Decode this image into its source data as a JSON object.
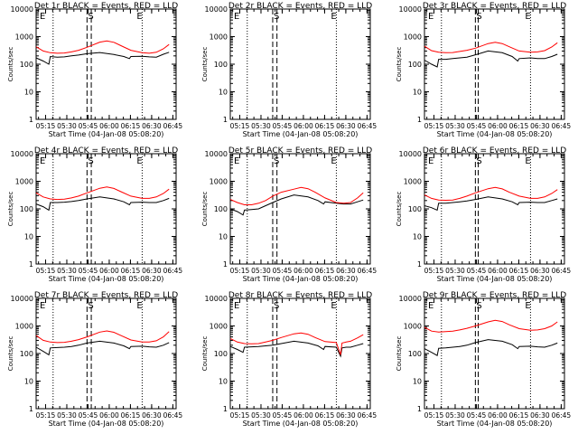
{
  "figure": {
    "time_axis_label": "Start Time (04-Jan-08 05:08:20)",
    "y_axis_label": "Counts/sec",
    "x_tick_labels": [
      "05:15",
      "05:30",
      "05:45",
      "06:00",
      "06:15",
      "06:30",
      "06:45"
    ],
    "y_tick_labels": [
      "1",
      "10",
      "100",
      "1000",
      "10000"
    ],
    "flag_labels": [
      "E",
      "S",
      "E"
    ],
    "colors": {
      "events": "#000000",
      "lld": "#ff0000",
      "frame": "#000000",
      "background": "#ffffff"
    }
  },
  "chart_data": [
    {
      "type": "line",
      "title": "Det 1r BLACK = Events, RED = LLD",
      "xlabel": "Start Time (04-Jan-08 05:08:20)",
      "ylabel": "Counts/sec",
      "x_unit": "minutes after 05:08:20",
      "xlim": [
        0,
        99
      ],
      "ylim": [
        1,
        10000
      ],
      "yscale": "log",
      "markers": {
        "dotted": [
          12,
          75
        ],
        "dashed": [
          36,
          39
        ]
      },
      "series": [
        {
          "name": "Events",
          "color": "black",
          "x": [
            0,
            5,
            9,
            10,
            15,
            20,
            25,
            30,
            36,
            45,
            55,
            62,
            66,
            67,
            75,
            80,
            85,
            90,
            94
          ],
          "y": [
            170,
            130,
            100,
            190,
            180,
            185,
            200,
            215,
            240,
            265,
            225,
            190,
            160,
            190,
            195,
            185,
            180,
            230,
            270
          ]
        },
        {
          "name": "LLD",
          "color": "red",
          "x": [
            0,
            5,
            10,
            15,
            20,
            25,
            30,
            36,
            45,
            50,
            55,
            60,
            67,
            75,
            80,
            85,
            90,
            94
          ],
          "y": [
            430,
            300,
            260,
            250,
            255,
            280,
            320,
            410,
            630,
            700,
            620,
            470,
            320,
            260,
            250,
            270,
            360,
            520
          ]
        }
      ]
    },
    {
      "type": "line",
      "title": "Det 2r BLACK = Events, RED = LLD",
      "xlabel": "Start Time (04-Jan-08 05:08:20)",
      "ylabel": "Counts/sec",
      "x_unit": "minutes after 05:08:20",
      "xlim": [
        0,
        99
      ],
      "ylim": [
        1,
        10000
      ],
      "yscale": "log",
      "markers": {
        "dotted": [
          12,
          75
        ],
        "dashed": [
          30,
          33
        ]
      },
      "series": []
    },
    {
      "type": "line",
      "title": "Det 3r BLACK = Events, RED = LLD",
      "xlabel": "Start Time (04-Jan-08 05:08:20)",
      "ylabel": "Counts/sec",
      "x_unit": "minutes after 05:08:20",
      "xlim": [
        0,
        99
      ],
      "ylim": [
        1,
        10000
      ],
      "yscale": "log",
      "markers": {
        "dotted": [
          12,
          75
        ],
        "dashed": [
          36,
          38
        ]
      },
      "series": [
        {
          "name": "Events",
          "color": "black",
          "x": [
            0,
            5,
            9,
            10,
            15,
            20,
            25,
            30,
            36,
            45,
            55,
            62,
            66,
            67,
            75,
            80,
            85,
            90,
            94
          ],
          "y": [
            140,
            100,
            80,
            150,
            150,
            160,
            170,
            180,
            220,
            300,
            260,
            190,
            130,
            160,
            170,
            160,
            160,
            190,
            230
          ]
        },
        {
          "name": "LLD",
          "color": "red",
          "x": [
            0,
            5,
            10,
            15,
            20,
            25,
            30,
            36,
            45,
            50,
            55,
            60,
            67,
            75,
            80,
            85,
            90,
            94
          ],
          "y": [
            450,
            310,
            270,
            260,
            265,
            290,
            320,
            380,
            560,
            620,
            560,
            430,
            300,
            270,
            280,
            310,
            420,
            600
          ]
        }
      ]
    },
    {
      "type": "line",
      "title": "Det 4r BLACK = Events, RED = LLD",
      "xlabel": "Start Time (04-Jan-08 05:08:20)",
      "ylabel": "Counts/sec",
      "x_unit": "minutes after 05:08:20",
      "xlim": [
        0,
        99
      ],
      "ylim": [
        1,
        10000
      ],
      "yscale": "log",
      "markers": {
        "dotted": [
          12,
          75
        ],
        "dashed": [
          36,
          39
        ]
      },
      "series": [
        {
          "name": "Events",
          "color": "black",
          "x": [
            0,
            5,
            9,
            10,
            15,
            20,
            25,
            30,
            36,
            45,
            55,
            62,
            66,
            67,
            75,
            80,
            85,
            90,
            94
          ],
          "y": [
            150,
            120,
            90,
            170,
            170,
            175,
            185,
            200,
            230,
            270,
            230,
            180,
            140,
            170,
            175,
            170,
            170,
            200,
            240
          ]
        },
        {
          "name": "LLD",
          "color": "red",
          "x": [
            0,
            5,
            10,
            15,
            20,
            25,
            30,
            36,
            45,
            50,
            55,
            60,
            67,
            75,
            80,
            85,
            90,
            94
          ],
          "y": [
            380,
            270,
            230,
            220,
            225,
            250,
            290,
            380,
            560,
            620,
            550,
            420,
            290,
            240,
            240,
            270,
            360,
            520
          ]
        }
      ]
    },
    {
      "type": "line",
      "title": "Det 5r BLACK = Events, RED = LLD",
      "xlabel": "Start Time (04-Jan-08 05:08:20)",
      "ylabel": "Counts/sec",
      "x_unit": "minutes after 05:08:20",
      "xlim": [
        0,
        99
      ],
      "ylim": [
        1,
        10000
      ],
      "yscale": "log",
      "markers": {
        "dotted": [
          12,
          75
        ],
        "dashed": [
          30,
          33
        ]
      },
      "series": [
        {
          "name": "Events",
          "color": "black",
          "x": [
            0,
            5,
            9,
            10,
            15,
            20,
            25,
            30,
            36,
            45,
            55,
            62,
            66,
            67,
            75,
            80,
            85,
            90,
            94
          ],
          "y": [
            100,
            80,
            60,
            90,
            95,
            100,
            130,
            170,
            230,
            320,
            270,
            200,
            150,
            180,
            160,
            150,
            150,
            180,
            210
          ]
        },
        {
          "name": "LLD",
          "color": "red",
          "x": [
            0,
            5,
            10,
            15,
            20,
            25,
            30,
            36,
            45,
            50,
            55,
            60,
            67,
            75,
            80,
            85,
            90,
            94
          ],
          "y": [
            220,
            170,
            140,
            140,
            160,
            200,
            290,
            400,
            520,
            600,
            540,
            400,
            250,
            170,
            160,
            170,
            250,
            380
          ]
        }
      ]
    },
    {
      "type": "line",
      "title": "Det 6r BLACK = Events, RED = LLD",
      "xlabel": "Start Time (04-Jan-08 05:08:20)",
      "ylabel": "Counts/sec",
      "x_unit": "minutes after 05:08:20",
      "xlim": [
        0,
        99
      ],
      "ylim": [
        1,
        10000
      ],
      "yscale": "log",
      "markers": {
        "dotted": [
          12,
          75
        ],
        "dashed": [
          36,
          38
        ]
      },
      "series": [
        {
          "name": "Events",
          "color": "black",
          "x": [
            0,
            5,
            9,
            10,
            15,
            20,
            25,
            30,
            36,
            45,
            55,
            62,
            66,
            67,
            75,
            80,
            85,
            90,
            94
          ],
          "y": [
            130,
            110,
            90,
            160,
            160,
            170,
            180,
            195,
            220,
            270,
            230,
            180,
            140,
            170,
            175,
            170,
            170,
            200,
            230
          ]
        },
        {
          "name": "LLD",
          "color": "red",
          "x": [
            0,
            5,
            10,
            15,
            20,
            25,
            30,
            36,
            45,
            50,
            55,
            60,
            67,
            75,
            80,
            85,
            90,
            94
          ],
          "y": [
            320,
            240,
            210,
            205,
            210,
            240,
            290,
            380,
            540,
            600,
            530,
            400,
            290,
            240,
            240,
            270,
            360,
            500
          ]
        }
      ]
    },
    {
      "type": "line",
      "title": "Det 7r BLACK = Events, RED = LLD",
      "xlabel": "Start Time (04-Jan-08 05:08:20)",
      "ylabel": "Counts/sec",
      "x_unit": "minutes after 05:08:20",
      "xlim": [
        0,
        99
      ],
      "ylim": [
        1,
        10000
      ],
      "yscale": "log",
      "markers": {
        "dotted": [
          12,
          75
        ],
        "dashed": [
          36,
          39
        ]
      },
      "series": [
        {
          "name": "Events",
          "color": "black",
          "x": [
            0,
            5,
            9,
            10,
            15,
            20,
            25,
            30,
            36,
            45,
            55,
            62,
            66,
            67,
            75,
            80,
            85,
            90,
            94
          ],
          "y": [
            170,
            120,
            90,
            160,
            165,
            170,
            180,
            200,
            240,
            280,
            240,
            190,
            150,
            180,
            185,
            175,
            170,
            200,
            250
          ]
        },
        {
          "name": "LLD",
          "color": "red",
          "x": [
            0,
            5,
            10,
            15,
            20,
            25,
            30,
            36,
            45,
            50,
            55,
            60,
            67,
            75,
            80,
            85,
            90,
            94
          ],
          "y": [
            450,
            300,
            260,
            250,
            255,
            280,
            320,
            400,
            600,
            660,
            590,
            450,
            310,
            260,
            260,
            290,
            400,
            620
          ]
        }
      ]
    },
    {
      "type": "line",
      "title": "Det 8r BLACK = Events, RED = LLD",
      "xlabel": "Start Time (04-Jan-08 05:08:20)",
      "ylabel": "Counts/sec",
      "x_unit": "minutes after 05:08:20",
      "xlim": [
        0,
        99
      ],
      "ylim": [
        1,
        10000
      ],
      "yscale": "log",
      "markers": {
        "dotted": [
          12,
          75
        ],
        "dashed": [
          30,
          33
        ]
      },
      "series": [
        {
          "name": "Events",
          "color": "black",
          "x": [
            0,
            5,
            9,
            10,
            15,
            20,
            25,
            30,
            36,
            45,
            55,
            62,
            66,
            67,
            75,
            78,
            79,
            82,
            85,
            90,
            94
          ],
          "y": [
            180,
            140,
            110,
            170,
            175,
            180,
            190,
            200,
            230,
            280,
            240,
            190,
            140,
            180,
            170,
            80,
            160,
            170,
            170,
            200,
            230
          ]
        },
        {
          "name": "LLD",
          "color": "red",
          "x": [
            0,
            5,
            10,
            15,
            20,
            25,
            30,
            36,
            45,
            50,
            55,
            60,
            67,
            75,
            78,
            79,
            82,
            85,
            90,
            94
          ],
          "y": [
            350,
            260,
            230,
            225,
            230,
            260,
            300,
            380,
            520,
            560,
            500,
            380,
            270,
            250,
            90,
            240,
            260,
            280,
            370,
            480
          ]
        }
      ]
    },
    {
      "type": "line",
      "title": "Det 9r BLACK = Events, RED = LLD",
      "xlabel": "Start Time (04-Jan-08 05:08:20)",
      "ylabel": "Counts/sec",
      "x_unit": "minutes after 05:08:20",
      "xlim": [
        0,
        99
      ],
      "ylim": [
        1,
        10000
      ],
      "yscale": "log",
      "markers": {
        "dotted": [
          12,
          75
        ],
        "dashed": [
          36,
          38
        ]
      },
      "series": [
        {
          "name": "Events",
          "color": "black",
          "x": [
            0,
            5,
            9,
            10,
            15,
            20,
            25,
            30,
            36,
            45,
            55,
            62,
            66,
            67,
            75,
            80,
            85,
            90,
            94
          ],
          "y": [
            150,
            110,
            85,
            155,
            160,
            170,
            180,
            200,
            250,
            320,
            280,
            210,
            150,
            180,
            185,
            175,
            170,
            200,
            240
          ]
        },
        {
          "name": "LLD",
          "color": "red",
          "x": [
            0,
            5,
            10,
            15,
            20,
            25,
            30,
            36,
            45,
            50,
            55,
            60,
            67,
            75,
            80,
            85,
            90,
            94
          ],
          "y": [
            900,
            650,
            600,
            620,
            650,
            720,
            820,
            1000,
            1400,
            1600,
            1450,
            1100,
            800,
            700,
            720,
            800,
            1000,
            1400
          ]
        }
      ]
    }
  ]
}
